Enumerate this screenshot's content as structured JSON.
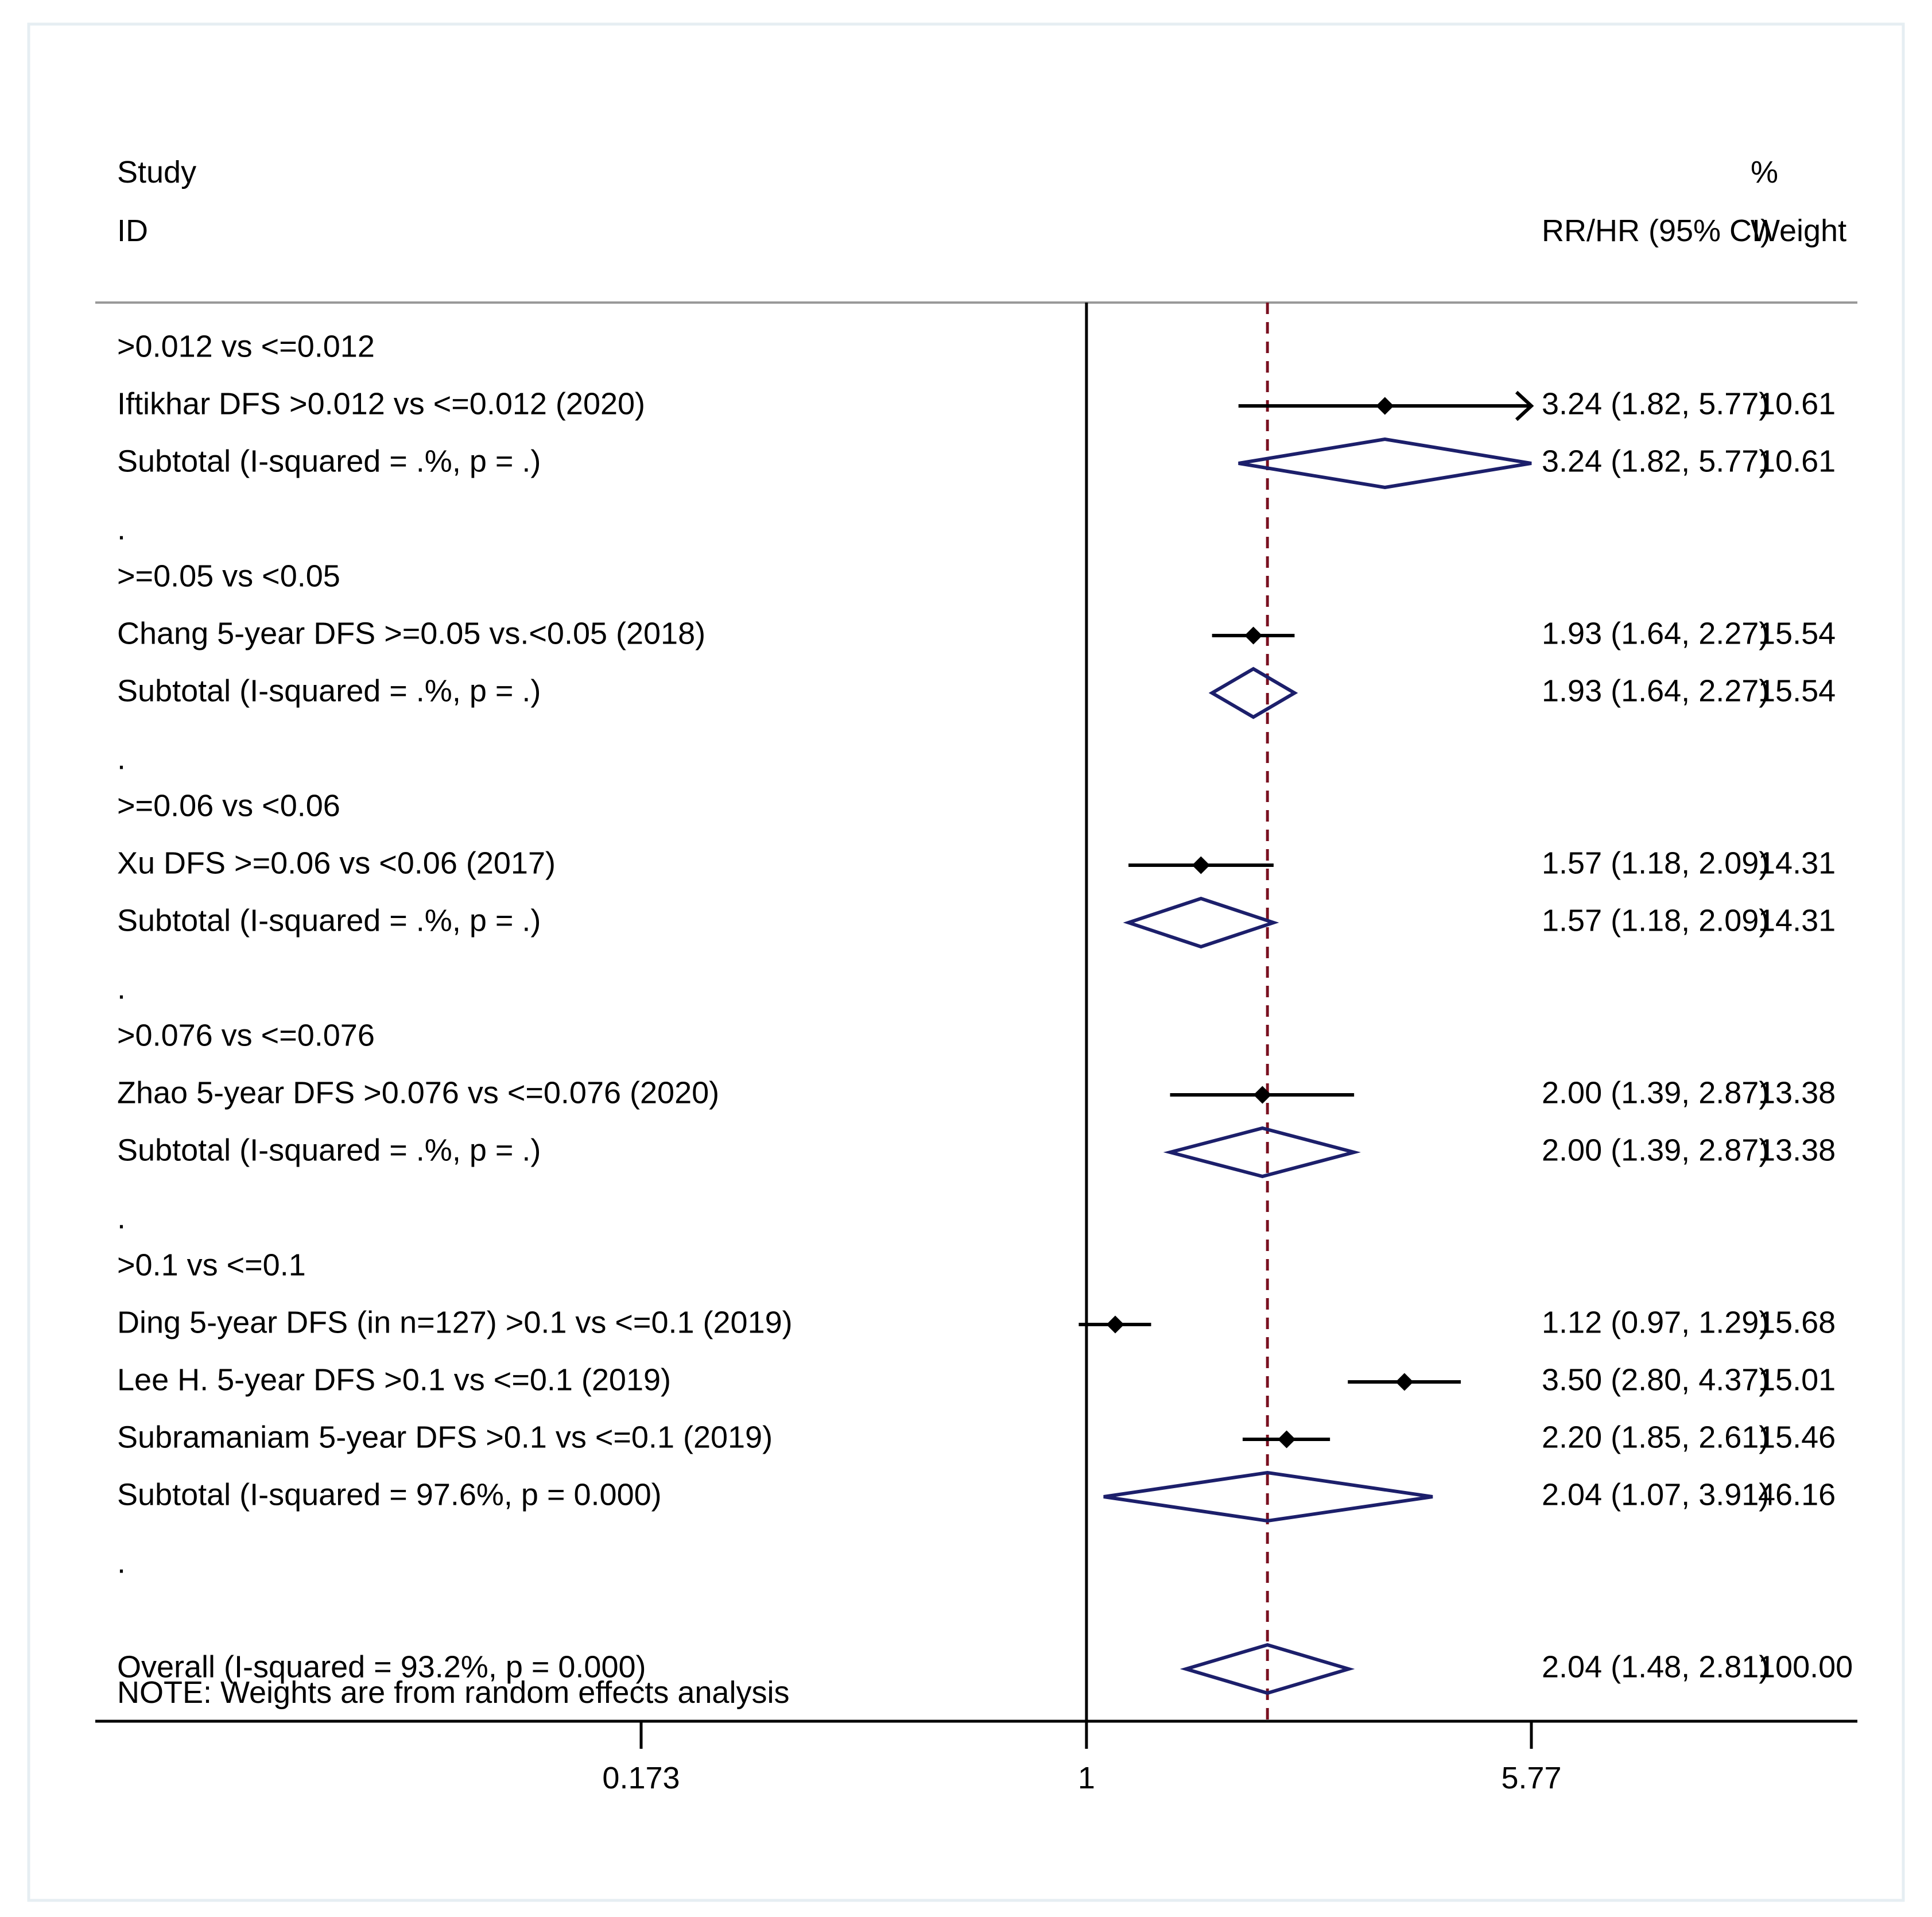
{
  "chart_data": {
    "type": "forest",
    "scale": "log",
    "header": {
      "study_line1": "Study",
      "study_line2": "ID",
      "effect_label": "RR/HR (95% CI)",
      "weight_line1": "%",
      "weight_line2": "Weight"
    },
    "x_ticks": [
      {
        "value": 0.173,
        "label": "0.173"
      },
      {
        "value": 1,
        "label": "1"
      },
      {
        "value": 5.77,
        "label": "5.77"
      }
    ],
    "xlim": [
      0.173,
      5.77
    ],
    "null_value": 1,
    "overall_estimate": 2.04,
    "rows": [
      {
        "kind": "group",
        "label": ">0.012 vs <=0.012"
      },
      {
        "kind": "study",
        "label": "Iftikhar DFS >0.012 vs <=0.012 (2020)",
        "est": 3.24,
        "lo": 1.82,
        "hi": 5.77,
        "arrow_right": true,
        "ci_text": "3.24 (1.82, 5.77)",
        "weight": "10.61"
      },
      {
        "kind": "subtotal",
        "label": "Subtotal  (I-squared = .%, p = .)",
        "est": 3.24,
        "lo": 1.82,
        "hi": 5.77,
        "ci_text": "3.24 (1.82, 5.77)",
        "weight": "10.61"
      },
      {
        "kind": "blank",
        "label": "."
      },
      {
        "kind": "group",
        "label": ">=0.05 vs <0.05"
      },
      {
        "kind": "study",
        "label": "Chang 5-year DFS >=0.05 vs.<0.05 (2018)",
        "est": 1.93,
        "lo": 1.64,
        "hi": 2.27,
        "ci_text": "1.93 (1.64, 2.27)",
        "weight": "15.54"
      },
      {
        "kind": "subtotal",
        "label": "Subtotal  (I-squared = .%, p = .)",
        "est": 1.93,
        "lo": 1.64,
        "hi": 2.27,
        "ci_text": "1.93 (1.64, 2.27)",
        "weight": "15.54"
      },
      {
        "kind": "blank",
        "label": "."
      },
      {
        "kind": "group",
        "label": ">=0.06 vs <0.06"
      },
      {
        "kind": "study",
        "label": "Xu DFS >=0.06 vs <0.06 (2017)",
        "est": 1.57,
        "lo": 1.18,
        "hi": 2.09,
        "ci_text": "1.57 (1.18, 2.09)",
        "weight": "14.31"
      },
      {
        "kind": "subtotal",
        "label": "Subtotal  (I-squared = .%, p = .)",
        "est": 1.57,
        "lo": 1.18,
        "hi": 2.09,
        "ci_text": "1.57 (1.18, 2.09)",
        "weight": "14.31"
      },
      {
        "kind": "blank",
        "label": "."
      },
      {
        "kind": "group",
        "label": ">0.076 vs <=0.076"
      },
      {
        "kind": "study",
        "label": "Zhao 5-year DFS >0.076 vs <=0.076 (2020)",
        "est": 2.0,
        "lo": 1.39,
        "hi": 2.87,
        "ci_text": "2.00 (1.39, 2.87)",
        "weight": "13.38"
      },
      {
        "kind": "subtotal",
        "label": "Subtotal  (I-squared = .%, p = .)",
        "est": 2.0,
        "lo": 1.39,
        "hi": 2.87,
        "ci_text": "2.00 (1.39, 2.87)",
        "weight": "13.38"
      },
      {
        "kind": "blank",
        "label": "."
      },
      {
        "kind": "group",
        "label": ">0.1 vs <=0.1"
      },
      {
        "kind": "study",
        "label": "Ding 5-year DFS (in n=127) >0.1 vs <=0.1 (2019)",
        "est": 1.12,
        "lo": 0.97,
        "hi": 1.29,
        "ci_text": "1.12 (0.97, 1.29)",
        "weight": "15.68"
      },
      {
        "kind": "study",
        "label": "Lee H. 5-year DFS >0.1 vs <=0.1 (2019)",
        "est": 3.5,
        "lo": 2.8,
        "hi": 4.37,
        "ci_text": "3.50 (2.80, 4.37)",
        "weight": "15.01"
      },
      {
        "kind": "study",
        "label": "Subramaniam 5-year DFS >0.1 vs <=0.1 (2019)",
        "est": 2.2,
        "lo": 1.85,
        "hi": 2.61,
        "ci_text": "2.20 (1.85, 2.61)",
        "weight": "15.46"
      },
      {
        "kind": "subtotal",
        "label": "Subtotal  (I-squared = 97.6%, p = 0.000)",
        "est": 2.04,
        "lo": 1.07,
        "hi": 3.91,
        "ci_text": "2.04 (1.07, 3.91)",
        "weight": "46.16"
      },
      {
        "kind": "blank",
        "label": "."
      },
      {
        "kind": "overall",
        "label": "Overall  (I-squared = 93.2%, p = 0.000)",
        "est": 2.04,
        "lo": 1.48,
        "hi": 2.81,
        "ci_text": "2.04 (1.48, 2.81)",
        "weight": "100.00"
      }
    ],
    "note": "NOTE: Weights are from random effects analysis",
    "colors": {
      "text": "#000000",
      "line": "#000000",
      "diamond": "#1c1f6b",
      "reference": "#7a1020",
      "header_rule": "#999999",
      "frame": "#e6eef2"
    }
  }
}
